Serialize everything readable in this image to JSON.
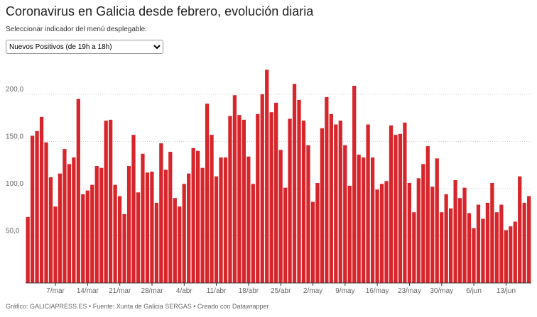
{
  "chart_data": {
    "type": "bar",
    "title": "Coronavirus en Galicia desde febrero, evolución diaria",
    "subtitle": "Seleccionar indicador del menú desplegable:",
    "dropdown": "Nuevos Positivos (de 19h a 18h)",
    "footer": "Gráfico: GALICIAPRESS.ES • Fuente: Xunta de Galicia SERGAS • Creado con Datawrapper",
    "color": "#d7262b",
    "grid": true,
    "ylim": [
      0,
      230
    ],
    "yticks": [
      {
        "value": 50,
        "label": "50,0"
      },
      {
        "value": 100,
        "label": "100,0"
      },
      {
        "value": 150,
        "label": "150,0"
      },
      {
        "value": 200,
        "label": "200,0"
      }
    ],
    "categories": [
      null,
      null,
      null,
      null,
      null,
      null,
      "7/mar",
      null,
      null,
      null,
      null,
      null,
      null,
      "14/mar",
      null,
      null,
      null,
      null,
      null,
      null,
      "21/mar",
      null,
      null,
      null,
      null,
      null,
      null,
      "28/mar",
      null,
      null,
      null,
      null,
      null,
      null,
      "4/abr",
      null,
      null,
      null,
      null,
      null,
      null,
      "11/abr",
      null,
      null,
      null,
      null,
      null,
      null,
      "18/abr",
      null,
      null,
      null,
      null,
      null,
      null,
      "25/abr",
      null,
      null,
      null,
      null,
      null,
      null,
      "2/may",
      null,
      null,
      null,
      null,
      null,
      null,
      "9/may",
      null,
      null,
      null,
      null,
      null,
      null,
      "16/may",
      null,
      null,
      null,
      null,
      null,
      null,
      "23/may",
      null,
      null,
      null,
      null,
      null,
      null,
      "30/may",
      null,
      null,
      null,
      null,
      null,
      null,
      "6/jun",
      null,
      null,
      null,
      null,
      null,
      null,
      "13/jun",
      null,
      null,
      null,
      null,
      null
    ],
    "values": [
      70,
      156,
      161,
      176,
      149,
      112,
      81,
      116,
      142,
      126,
      133,
      195,
      94,
      98,
      104,
      124,
      122,
      172,
      173,
      104,
      92,
      73,
      124,
      157,
      96,
      137,
      117,
      118,
      85,
      148,
      120,
      139,
      90,
      81,
      105,
      116,
      143,
      140,
      122,
      190,
      157,
      113,
      133,
      133,
      177,
      199,
      178,
      173,
      134,
      105,
      179,
      200,
      226,
      181,
      191,
      141,
      101,
      174,
      211,
      194,
      172,
      146,
      86,
      106,
      164,
      197,
      179,
      168,
      172,
      146,
      103,
      209,
      136,
      133,
      168,
      133,
      99,
      105,
      108,
      167,
      157,
      158,
      170,
      106,
      75,
      111,
      126,
      145,
      102,
      132,
      75,
      94,
      79,
      109,
      90,
      101,
      74,
      58,
      83,
      68,
      85,
      106,
      75,
      83,
      56,
      60,
      65,
      113,
      85,
      92
    ]
  }
}
